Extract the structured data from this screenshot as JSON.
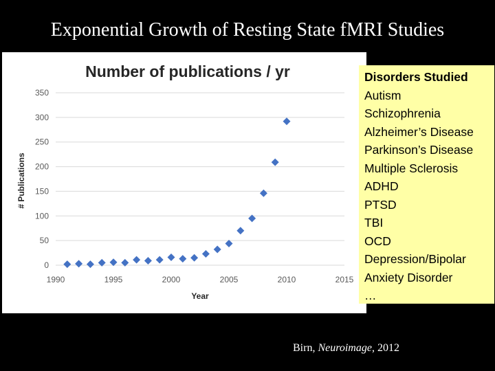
{
  "slide": {
    "title": "Exponential Growth of Resting State fMRI Studies",
    "citation_author": "Birn, ",
    "citation_journal": "Neuroimage",
    "citation_year": ", 2012"
  },
  "sidebar": {
    "heading": "Disorders Studied",
    "items": [
      "Autism",
      "Schizophrenia",
      "Alzheimer’s Disease",
      "Parkinson’s Disease",
      "Multiple Sclerosis",
      "ADHD",
      "PTSD",
      "TBI",
      "OCD",
      "Depression/Bipolar",
      "Anxiety Disorder",
      "…"
    ]
  },
  "colors": {
    "background": "#000000",
    "marker": "#4472c4",
    "sidebar_bg": "#ffffa6",
    "gridline": "#d9d9d9"
  },
  "chart_data": {
    "type": "scatter",
    "title": "Number of publications / yr",
    "xlabel": "Year",
    "ylabel": "# Publications",
    "xlim": [
      1990,
      2015
    ],
    "ylim": [
      0,
      350
    ],
    "xticks": [
      1990,
      1995,
      2000,
      2005,
      2010,
      2015
    ],
    "yticks": [
      0,
      50,
      100,
      150,
      200,
      250,
      300,
      350
    ],
    "grid": true,
    "series": [
      {
        "name": "Publications",
        "x": [
          1991,
          1992,
          1993,
          1994,
          1995,
          1996,
          1997,
          1998,
          1999,
          2000,
          2001,
          2002,
          2003,
          2004,
          2005,
          2006,
          2007,
          2008,
          2009,
          2010
        ],
        "y": [
          2,
          3,
          2,
          5,
          6,
          5,
          11,
          9,
          11,
          16,
          13,
          15,
          23,
          32,
          44,
          70,
          95,
          146,
          209,
          292
        ]
      }
    ]
  }
}
